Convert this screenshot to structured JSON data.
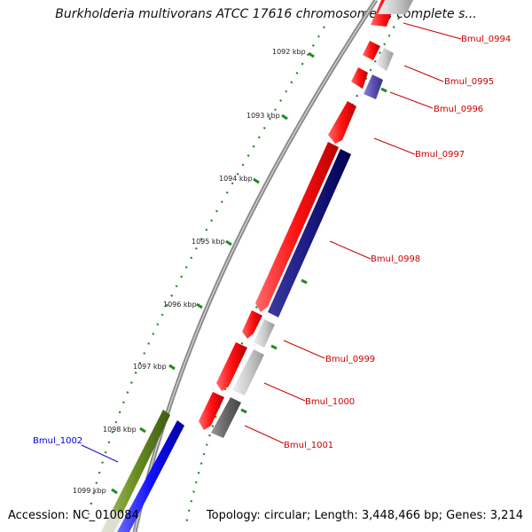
{
  "title": "Burkholderia multivorans ATCC 17616 chromosome 1, complete s...",
  "footer": {
    "accession": "Accession: NC_010084",
    "info": "Topology: circular; Length: 3,448,466 bp; Genes: 3,214"
  },
  "kbp_labels": [
    "1092 kbp",
    "1093 kbp",
    "1094 kbp",
    "1095 kbp",
    "1096 kbp",
    "1097 kbp",
    "1098 kbp",
    "1099 kbp"
  ],
  "gene_labels": [
    "Bmul_0994",
    "Bmul_0995",
    "Bmul_0996",
    "Bmul_0997",
    "Bmul_0998",
    "Bmul_0999",
    "Bmul_1000",
    "Bmul_1001",
    "Bmul_1002"
  ],
  "colors": {
    "forward_label": "#cc0000",
    "reverse_label": "#0000cc",
    "backbone": "#777777",
    "ticks": "#228822"
  }
}
